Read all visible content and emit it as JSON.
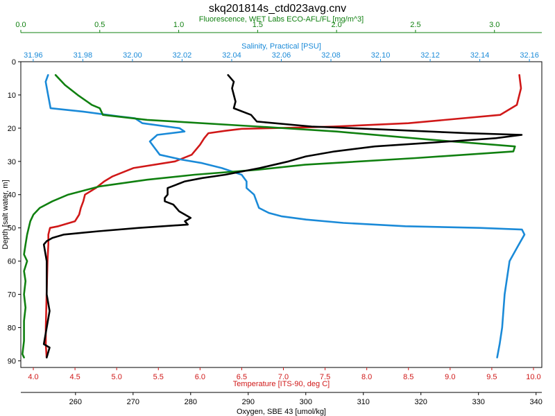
{
  "chart_data": {
    "type": "line",
    "title": "skq201814s_ctd023avg.cnv",
    "ylabel": "Depth [salt water, m]",
    "y_axis": {
      "range": [
        0,
        92
      ],
      "inverted": true,
      "ticks": [
        0,
        10,
        20,
        30,
        40,
        50,
        60,
        70,
        80,
        90
      ]
    },
    "x_axes": [
      {
        "id": "fluorescence",
        "label": "Fluorescence, WET Labs ECO-AFL/FL [mg/m^3]",
        "placement": "top-outer",
        "color": "#108010",
        "range": [
          0.0,
          3.3
        ],
        "ticks": [
          0.0,
          0.5,
          1.0,
          1.5,
          2.0,
          2.5,
          3.0
        ],
        "tick_labels": [
          "0.0",
          "0.5",
          "1.0",
          "1.5",
          "2.0",
          "2.5",
          "3.0"
        ]
      },
      {
        "id": "salinity",
        "label": "Salinity, Practical [PSU]",
        "placement": "top-inner",
        "color": "#1a8ad8",
        "range": [
          31.955,
          32.165
        ],
        "ticks": [
          31.96,
          31.98,
          32.0,
          32.02,
          32.04,
          32.06,
          32.08,
          32.1,
          32.12,
          32.14,
          32.16
        ],
        "tick_labels": [
          "31.96",
          "31.98",
          "32.00",
          "32.02",
          "32.04",
          "32.06",
          "32.08",
          "32.10",
          "32.12",
          "32.14",
          "32.16"
        ]
      },
      {
        "id": "temperature",
        "label": "Temperature [ITS-90, deg C]",
        "placement": "bottom-inner",
        "color": "#d01818",
        "range": [
          3.85,
          10.1
        ],
        "ticks": [
          4.0,
          4.5,
          5.0,
          5.5,
          6.0,
          6.5,
          7.0,
          7.5,
          8.0,
          8.5,
          9.0,
          9.5,
          10.0
        ],
        "tick_labels": [
          "4.0",
          "4.5",
          "5.0",
          "5.5",
          "6.0",
          "6.5",
          "7.0",
          "7.5",
          "8.0",
          "8.5",
          "9.0",
          "9.5",
          "10.0"
        ]
      },
      {
        "id": "oxygen",
        "label": "Oxygen, SBE 43 [umol/kg]",
        "placement": "bottom-outer",
        "color": "#000000",
        "range": [
          250.5,
          341
        ],
        "ticks": [
          260,
          270,
          280,
          290,
          300,
          310,
          320,
          330,
          340
        ],
        "tick_labels": [
          "260",
          "270",
          "280",
          "290",
          "300",
          "310",
          "320",
          "330",
          "340"
        ]
      }
    ],
    "grid": false,
    "series": [
      {
        "axis": "temperature",
        "color": "#d01818",
        "points": [
          [
            9.83,
            4
          ],
          [
            9.85,
            8
          ],
          [
            9.8,
            13
          ],
          [
            9.6,
            16
          ],
          [
            8.5,
            18.5
          ],
          [
            7.6,
            19.5
          ],
          [
            7.2,
            19.8
          ],
          [
            6.5,
            20.2
          ],
          [
            6.3,
            20.8
          ],
          [
            6.1,
            21.5
          ],
          [
            6.05,
            23
          ],
          [
            6.0,
            25
          ],
          [
            5.9,
            28
          ],
          [
            5.7,
            30
          ],
          [
            5.2,
            32
          ],
          [
            4.95,
            34.5
          ],
          [
            4.85,
            36
          ],
          [
            4.75,
            38
          ],
          [
            4.62,
            40
          ],
          [
            4.6,
            42
          ],
          [
            4.57,
            44
          ],
          [
            4.55,
            46
          ],
          [
            4.5,
            48
          ],
          [
            4.3,
            49.5
          ],
          [
            4.2,
            50
          ],
          [
            4.18,
            52
          ],
          [
            4.18,
            55
          ],
          [
            4.17,
            60
          ],
          [
            4.16,
            70
          ],
          [
            4.15,
            80
          ],
          [
            4.15,
            85
          ],
          [
            4.16,
            89
          ]
        ]
      },
      {
        "axis": "salinity",
        "color": "#1a8ad8",
        "points": [
          [
            31.966,
            4
          ],
          [
            31.965,
            6
          ],
          [
            31.966,
            10
          ],
          [
            31.967,
            14
          ],
          [
            31.98,
            15
          ],
          [
            31.995,
            16.5
          ],
          [
            32.001,
            17
          ],
          [
            32.004,
            18.5
          ],
          [
            32.019,
            20
          ],
          [
            32.021,
            21
          ],
          [
            32.01,
            22
          ],
          [
            32.007,
            24
          ],
          [
            32.009,
            26
          ],
          [
            32.011,
            28
          ],
          [
            32.02,
            29.5
          ],
          [
            32.028,
            30.5
          ],
          [
            32.036,
            32
          ],
          [
            32.044,
            34
          ],
          [
            32.046,
            36
          ],
          [
            32.046,
            38
          ],
          [
            32.049,
            40
          ],
          [
            32.05,
            42
          ],
          [
            32.051,
            44
          ],
          [
            32.055,
            45.5
          ],
          [
            32.06,
            46.5
          ],
          [
            32.07,
            47.5
          ],
          [
            32.085,
            48.5
          ],
          [
            32.11,
            49.5
          ],
          [
            32.14,
            50
          ],
          [
            32.157,
            50.5
          ],
          [
            32.158,
            52
          ],
          [
            32.155,
            56
          ],
          [
            32.152,
            60
          ],
          [
            32.15,
            70
          ],
          [
            32.149,
            80
          ],
          [
            32.148,
            85
          ],
          [
            32.147,
            89
          ]
        ]
      },
      {
        "axis": "fluorescence",
        "color": "#108010",
        "points": [
          [
            0.22,
            4
          ],
          [
            0.28,
            7
          ],
          [
            0.36,
            10
          ],
          [
            0.45,
            13
          ],
          [
            0.5,
            14
          ],
          [
            0.52,
            16
          ],
          [
            0.8,
            17.5
          ],
          [
            1.5,
            19.5
          ],
          [
            2.0,
            21
          ],
          [
            2.6,
            23.5
          ],
          [
            3.0,
            25
          ],
          [
            3.13,
            25.5
          ],
          [
            3.12,
            27
          ],
          [
            2.5,
            29
          ],
          [
            1.8,
            31
          ],
          [
            1.5,
            32.5
          ],
          [
            1.1,
            34
          ],
          [
            0.8,
            35.5
          ],
          [
            0.5,
            37.5
          ],
          [
            0.3,
            40
          ],
          [
            0.2,
            42
          ],
          [
            0.12,
            44
          ],
          [
            0.08,
            46
          ],
          [
            0.06,
            48
          ],
          [
            0.04,
            52
          ],
          [
            0.03,
            55
          ],
          [
            0.02,
            58
          ],
          [
            0.04,
            60
          ],
          [
            0.02,
            63
          ],
          [
            0.03,
            66
          ],
          [
            0.02,
            70
          ],
          [
            0.03,
            74
          ],
          [
            0.02,
            78
          ],
          [
            0.02,
            84
          ],
          [
            0.01,
            88
          ],
          [
            0.02,
            89
          ]
        ]
      },
      {
        "axis": "oxygen",
        "color": "#000000",
        "points": [
          [
            286.5,
            4
          ],
          [
            287.5,
            6
          ],
          [
            287.2,
            8
          ],
          [
            287.8,
            12
          ],
          [
            287.5,
            14
          ],
          [
            290.5,
            16
          ],
          [
            291.5,
            18
          ],
          [
            301,
            19.5
          ],
          [
            315,
            20.5
          ],
          [
            328,
            21.5
          ],
          [
            337.5,
            22
          ],
          [
            333,
            23
          ],
          [
            325,
            24
          ],
          [
            312,
            25.5
          ],
          [
            305,
            27
          ],
          [
            300,
            28.5
          ],
          [
            297,
            30
          ],
          [
            292,
            32
          ],
          [
            286,
            34
          ],
          [
            282,
            35
          ],
          [
            279,
            36
          ],
          [
            277.5,
            37
          ],
          [
            276,
            38
          ],
          [
            276,
            40
          ],
          [
            275.5,
            41
          ],
          [
            275.5,
            42
          ],
          [
            277,
            43
          ],
          [
            278,
            45
          ],
          [
            279,
            46
          ],
          [
            280,
            47
          ],
          [
            279,
            48
          ],
          [
            279.5,
            49
          ],
          [
            271,
            50
          ],
          [
            264,
            51
          ],
          [
            258,
            52
          ],
          [
            256,
            53
          ],
          [
            255,
            54
          ],
          [
            254.5,
            55
          ],
          [
            255,
            60
          ],
          [
            255,
            70
          ],
          [
            255.5,
            75
          ],
          [
            255,
            80
          ],
          [
            254.5,
            85
          ],
          [
            255.5,
            86
          ],
          [
            255,
            89
          ]
        ]
      }
    ]
  }
}
